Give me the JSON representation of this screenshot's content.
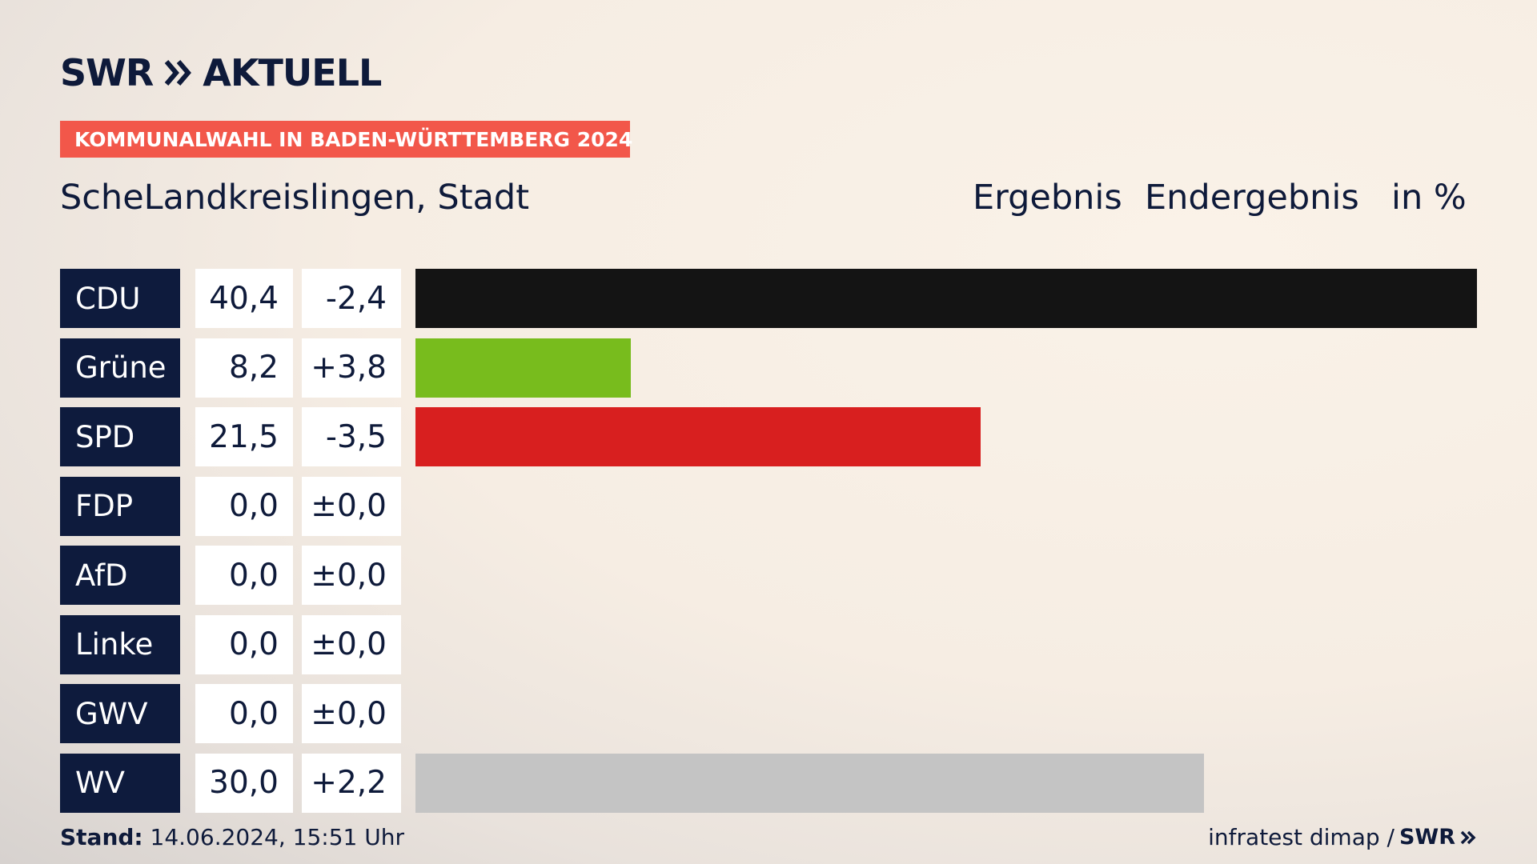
{
  "header": {
    "brand_left": "SWR",
    "brand_right": "AKTUELL",
    "banner": "KOMMUNALWAHL IN BADEN-WÜRTTEMBERG 2024",
    "place": "ScheLandkreislingen, Stadt",
    "col_result": "Ergebnis",
    "col_final": "Endergebnis",
    "col_unit": "in %"
  },
  "footer": {
    "stand_label": "Stand:",
    "stand_value": "14.06.2024, 15:51 Uhr",
    "source": "infratest dimap /",
    "source_brand": "SWR"
  },
  "colors": {
    "navy": "#0e1b3d",
    "banner": "#f2574a"
  },
  "chart_data": {
    "type": "bar",
    "orientation": "horizontal",
    "unit": "%",
    "xlim": [
      0,
      40.4
    ],
    "categories": [
      "CDU",
      "Grüne",
      "SPD",
      "FDP",
      "AfD",
      "Linke",
      "GWV",
      "WV"
    ],
    "values": [
      40.4,
      8.2,
      21.5,
      0.0,
      0.0,
      0.0,
      0.0,
      30.0
    ],
    "value_labels": [
      "40,4",
      "8,2",
      "21,5",
      "0,0",
      "0,0",
      "0,0",
      "0,0",
      "30,0"
    ],
    "change_labels": [
      "-2,4",
      "+3,8",
      "-3,5",
      "±0,0",
      "±0,0",
      "±0,0",
      "±0,0",
      "+2,2"
    ],
    "changes": [
      -2.4,
      3.8,
      -3.5,
      0.0,
      0.0,
      0.0,
      0.0,
      2.2
    ],
    "bar_colors": [
      "#141414",
      "#78bc1d",
      "#d81f1f",
      "#f5d90a",
      "#0a9bd6",
      "#b81a5e",
      "#7a7a7a",
      "#c4c4c4"
    ]
  }
}
